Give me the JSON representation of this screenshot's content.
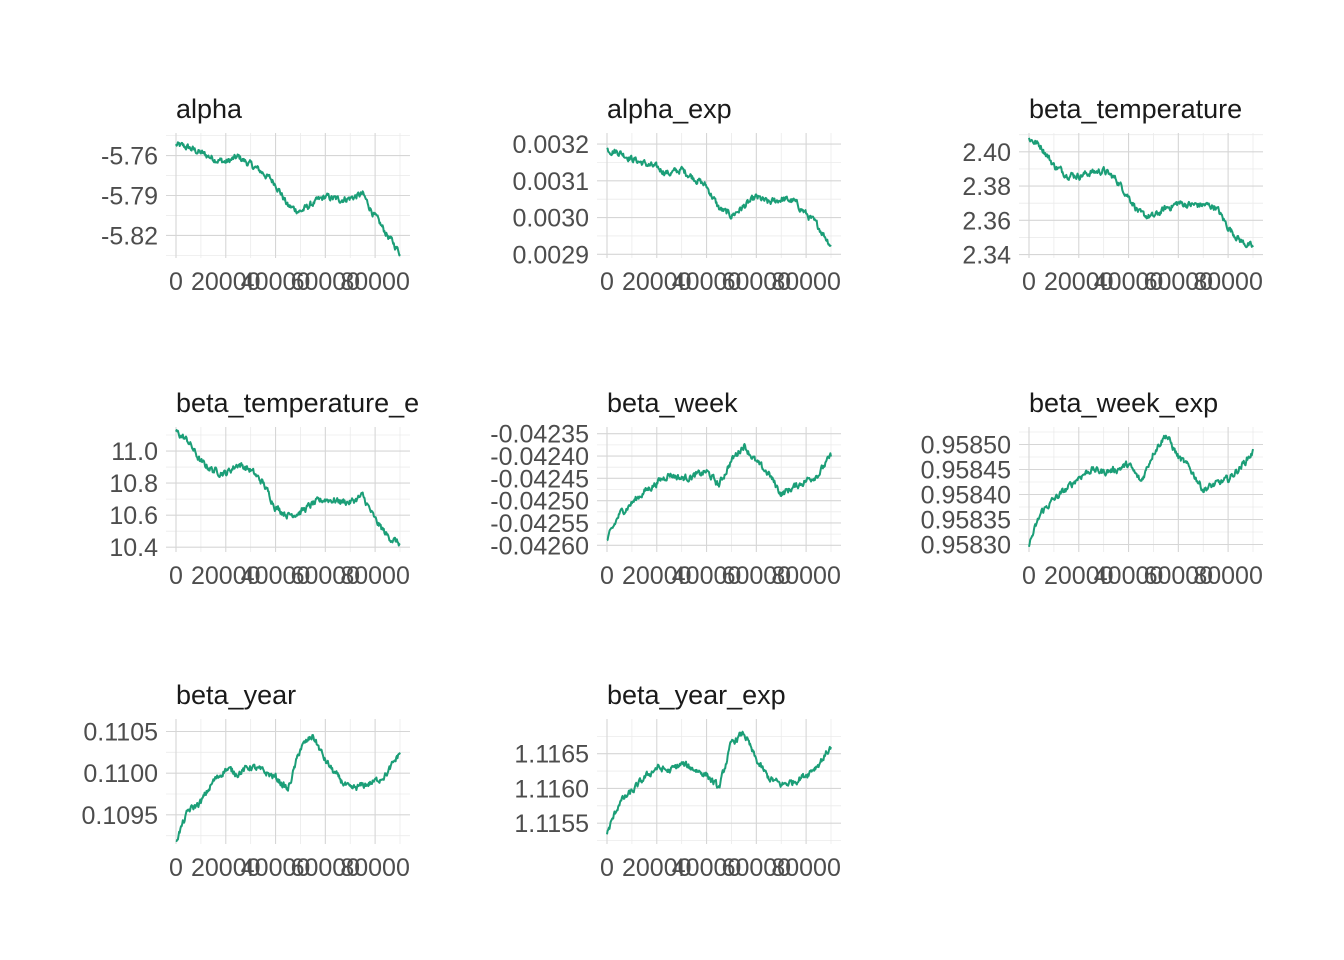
{
  "colors": {
    "trace": "#1b9e77",
    "grid_major": "#d6d6d6",
    "grid_minor": "#ebebeb"
  },
  "chart_data": [
    {
      "type": "line",
      "title": "alpha",
      "x_ticks": [
        "0",
        "20000",
        "40000",
        "60000",
        "80000"
      ],
      "y_ticks": [
        "-5.76",
        "-5.79",
        "-5.82"
      ],
      "xlim": [
        0,
        90000
      ],
      "ylim": [
        -5.837,
        -5.743
      ],
      "grid": true,
      "series": [
        {
          "x": [
            0,
            5000,
            10000,
            15000,
            20000,
            25000,
            30000,
            35000,
            40000,
            45000,
            50000,
            55000,
            60000,
            65000,
            70000,
            75000,
            80000,
            85000,
            90000
          ],
          "y": [
            -5.752,
            -5.754,
            -5.758,
            -5.762,
            -5.765,
            -5.761,
            -5.767,
            -5.773,
            -5.781,
            -5.798,
            -5.802,
            -5.796,
            -5.791,
            -5.793,
            -5.792,
            -5.789,
            -5.806,
            -5.82,
            -5.833
          ]
        }
      ]
    },
    {
      "type": "line",
      "title": "alpha_exp",
      "x_ticks": [
        "0",
        "20000",
        "40000",
        "60000",
        "80000"
      ],
      "y_ticks": [
        "0.0032",
        "0.0031",
        "0.0030",
        "0.0029"
      ],
      "xlim": [
        0,
        90000
      ],
      "ylim": [
        0.00289,
        0.00323
      ],
      "grid": true,
      "series": [
        {
          "x": [
            0,
            5000,
            10000,
            15000,
            20000,
            25000,
            30000,
            35000,
            40000,
            45000,
            50000,
            55000,
            60000,
            65000,
            70000,
            75000,
            80000,
            85000,
            90000
          ],
          "y": [
            0.003185,
            0.003178,
            0.00316,
            0.003147,
            0.003135,
            0.00312,
            0.00313,
            0.003108,
            0.003085,
            0.003025,
            0.003005,
            0.00303,
            0.003055,
            0.00304,
            0.00305,
            0.003045,
            0.00301,
            0.002975,
            0.002925
          ]
        }
      ]
    },
    {
      "type": "line",
      "title": "beta_temperature",
      "x_ticks": [
        "0",
        "20000",
        "40000",
        "60000",
        "80000"
      ],
      "y_ticks": [
        "2.40",
        "2.38",
        "2.36",
        "2.34"
      ],
      "xlim": [
        0,
        90000
      ],
      "ylim": [
        2.338,
        2.411
      ],
      "grid": true,
      "series": [
        {
          "x": [
            0,
            5000,
            10000,
            15000,
            20000,
            25000,
            30000,
            35000,
            40000,
            45000,
            50000,
            55000,
            60000,
            65000,
            70000,
            75000,
            80000,
            85000,
            90000
          ],
          "y": [
            2.408,
            2.403,
            2.392,
            2.387,
            2.386,
            2.388,
            2.389,
            2.384,
            2.374,
            2.363,
            2.362,
            2.367,
            2.37,
            2.369,
            2.369,
            2.368,
            2.356,
            2.348,
            2.344
          ]
        }
      ]
    },
    {
      "type": "line",
      "title": "beta_temperature_e",
      "x_ticks": [
        "0",
        "20000",
        "40000",
        "60000",
        "80000"
      ],
      "y_ticks": [
        "11.0",
        "10.8",
        "10.6",
        "10.4"
      ],
      "xlim": [
        0,
        90000
      ],
      "ylim": [
        10.37,
        11.15
      ],
      "grid": true,
      "series": [
        {
          "x": [
            0,
            5000,
            10000,
            15000,
            20000,
            25000,
            30000,
            35000,
            40000,
            45000,
            50000,
            55000,
            60000,
            65000,
            70000,
            75000,
            80000,
            85000,
            90000
          ],
          "y": [
            11.12,
            11.06,
            10.93,
            10.88,
            10.86,
            10.92,
            10.88,
            10.8,
            10.65,
            10.6,
            10.62,
            10.67,
            10.7,
            10.69,
            10.68,
            10.72,
            10.57,
            10.47,
            10.42
          ]
        }
      ]
    },
    {
      "type": "line",
      "title": "beta_week",
      "x_ticks": [
        "0",
        "20000",
        "40000",
        "60000",
        "80000"
      ],
      "y_ticks": [
        "-0.04235",
        "-0.04240",
        "-0.04245",
        "-0.04250",
        "-0.04255",
        "-0.04260"
      ],
      "xlim": [
        0,
        90000
      ],
      "ylim": [
        -0.042615,
        -0.042335
      ],
      "grid": true,
      "series": [
        {
          "x": [
            0,
            5000,
            10000,
            15000,
            20000,
            25000,
            30000,
            35000,
            40000,
            45000,
            50000,
            55000,
            60000,
            65000,
            70000,
            75000,
            80000,
            85000,
            90000
          ],
          "y": [
            -0.04259,
            -0.04253,
            -0.042505,
            -0.04248,
            -0.04246,
            -0.04244,
            -0.04245,
            -0.042445,
            -0.042435,
            -0.042465,
            -0.04241,
            -0.042375,
            -0.042415,
            -0.04244,
            -0.042485,
            -0.04247,
            -0.042455,
            -0.04244,
            -0.0424
          ]
        }
      ]
    },
    {
      "type": "line",
      "title": "beta_week_exp",
      "x_ticks": [
        "0",
        "20000",
        "40000",
        "60000",
        "80000"
      ],
      "y_ticks": [
        "0.95850",
        "0.95845",
        "0.95840",
        "0.95835",
        "0.95830"
      ],
      "xlim": [
        0,
        90000
      ],
      "ylim": [
        0.958285,
        0.958535
      ],
      "grid": true,
      "series": [
        {
          "x": [
            0,
            5000,
            10000,
            15000,
            20000,
            25000,
            30000,
            35000,
            40000,
            45000,
            50000,
            55000,
            60000,
            65000,
            70000,
            75000,
            80000,
            85000,
            90000
          ],
          "y": [
            0.9583,
            0.958365,
            0.95839,
            0.95841,
            0.958435,
            0.95845,
            0.958445,
            0.95845,
            0.95846,
            0.958425,
            0.958485,
            0.95852,
            0.958475,
            0.95845,
            0.95841,
            0.95842,
            0.95843,
            0.958455,
            0.958485
          ]
        }
      ]
    },
    {
      "type": "line",
      "title": "beta_year",
      "x_ticks": [
        "0",
        "20000",
        "40000",
        "60000",
        "80000"
      ],
      "y_ticks": [
        "0.1105",
        "0.1100",
        "0.1095"
      ],
      "xlim": [
        0,
        90000
      ],
      "ylim": [
        0.10915,
        0.11065
      ],
      "grid": true,
      "series": [
        {
          "x": [
            0,
            5000,
            10000,
            15000,
            20000,
            25000,
            30000,
            35000,
            40000,
            45000,
            50000,
            55000,
            60000,
            65000,
            70000,
            75000,
            80000,
            85000,
            90000
          ],
          "y": [
            0.1092,
            0.10955,
            0.10965,
            0.1099,
            0.11005,
            0.11,
            0.11008,
            0.11002,
            0.10995,
            0.1098,
            0.1103,
            0.11045,
            0.11015,
            0.10995,
            0.1098,
            0.10985,
            0.1099,
            0.11,
            0.11025
          ]
        }
      ]
    },
    {
      "type": "line",
      "title": "beta_year_exp",
      "x_ticks": [
        "0",
        "20000",
        "40000",
        "60000",
        "80000"
      ],
      "y_ticks": [
        "1.1165",
        "1.1160",
        "1.1155"
      ],
      "xlim": [
        0,
        90000
      ],
      "ylim": [
        1.1152,
        1.117
      ],
      "grid": true,
      "series": [
        {
          "x": [
            0,
            5000,
            10000,
            15000,
            20000,
            25000,
            30000,
            35000,
            40000,
            45000,
            50000,
            55000,
            60000,
            65000,
            70000,
            75000,
            80000,
            85000,
            90000
          ],
          "y": [
            1.11535,
            1.1158,
            1.11595,
            1.11615,
            1.1163,
            1.11625,
            1.11635,
            1.11628,
            1.1162,
            1.116,
            1.11665,
            1.1168,
            1.1164,
            1.11615,
            1.11605,
            1.1161,
            1.1162,
            1.11635,
            1.1166
          ]
        }
      ]
    }
  ]
}
